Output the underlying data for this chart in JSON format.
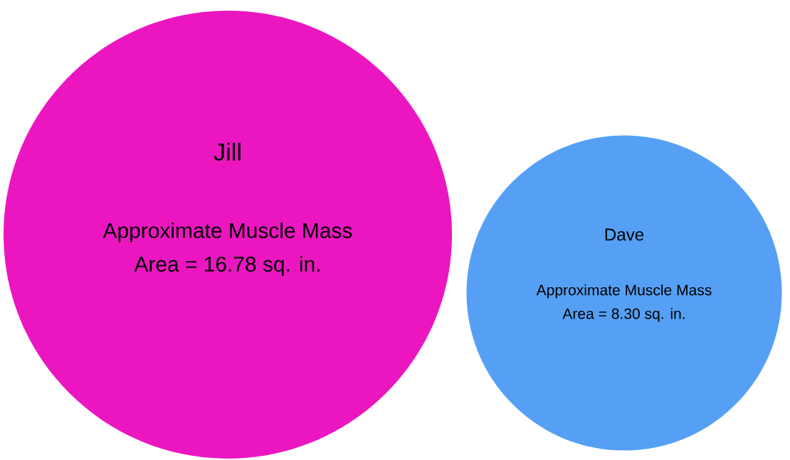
{
  "chart_data": {
    "type": "other",
    "categories": [
      "Jill",
      "Dave"
    ],
    "values": [
      16.78,
      8.3
    ],
    "colors": [
      "#ec16c0",
      "#55a0f5"
    ],
    "value_labels": [
      "Area = 16.78 sq. in.",
      "Area = 8.30 sq. in."
    ],
    "annotations": [
      "Approximate Muscle Mass",
      "Approximate Muscle Mass"
    ]
  }
}
